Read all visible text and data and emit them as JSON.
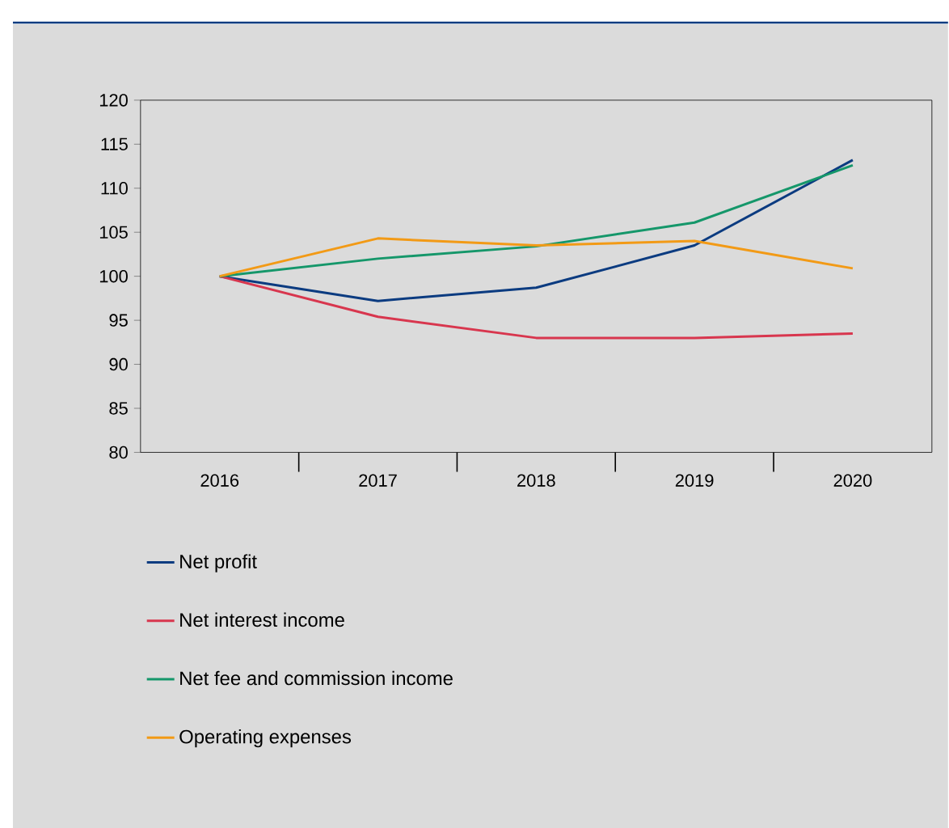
{
  "chart_data": {
    "type": "line",
    "categories": [
      "2016",
      "2017",
      "2018",
      "2019",
      "2020"
    ],
    "ylim": [
      80,
      120
    ],
    "yticks": [
      80,
      85,
      90,
      95,
      100,
      105,
      110,
      115,
      120
    ],
    "grid": false,
    "legend": "bottom",
    "marker": "none",
    "line_style": "solid",
    "series": [
      {
        "name": "Net profit",
        "color": "#0b3b80",
        "values": [
          100,
          97.2,
          98.7,
          103.5,
          113.2
        ]
      },
      {
        "name": "Net interest income",
        "color": "#d8364e",
        "values": [
          100,
          95.4,
          93.0,
          93.0,
          93.5
        ]
      },
      {
        "name": "Net fee and commission income",
        "color": "#15976a",
        "values": [
          100,
          102.0,
          103.4,
          106.1,
          112.6
        ]
      },
      {
        "name": "Operating expenses",
        "color": "#f29a16",
        "values": [
          100,
          104.3,
          103.5,
          104.0,
          100.9
        ]
      }
    ]
  }
}
